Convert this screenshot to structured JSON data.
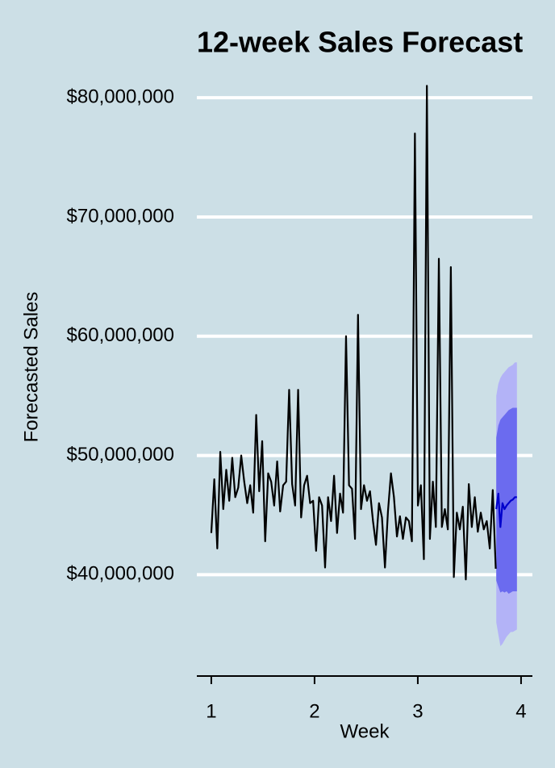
{
  "chart_data": {
    "type": "line",
    "title": "12-week Sales Forecast",
    "x_label": "Week",
    "y_label": "Forecasted Sales",
    "xlim": [
      0.86,
      4.11
    ],
    "xticks": [
      1,
      2,
      3,
      4
    ],
    "ylim": [
      31500000,
      81500000
    ],
    "yticks": [
      {
        "value": 40000000,
        "label": "$40,000,000"
      },
      {
        "value": 50000000,
        "label": "$50,000,000"
      },
      {
        "value": 60000000,
        "label": "$60,000,000"
      },
      {
        "value": 70000000,
        "label": "$70,000,000"
      },
      {
        "value": 80000000,
        "label": "$80,000,000"
      }
    ],
    "grid": true,
    "grid_color": "#ffffff",
    "background": "#ccdfe6",
    "bands": [
      {
        "color": "#b3b3f7",
        "x": [
          3.76,
          3.78,
          3.8,
          3.82,
          3.84,
          3.86,
          3.88,
          3.9,
          3.92,
          3.94,
          3.96
        ],
        "lower": [
          36000000,
          35000000,
          34000000,
          34200000,
          34500000,
          34800000,
          35000000,
          35200000,
          35200000,
          35300000,
          35400000
        ],
        "upper": [
          55000000,
          56000000,
          56500000,
          56800000,
          57000000,
          57200000,
          57400000,
          57500000,
          57600000,
          57800000,
          57800000
        ]
      },
      {
        "color": "#6b6bef",
        "x": [
          3.76,
          3.78,
          3.8,
          3.82,
          3.84,
          3.86,
          3.88,
          3.9,
          3.92,
          3.94,
          3.96
        ],
        "lower": [
          39500000,
          39000000,
          38500000,
          38600000,
          38500000,
          38600000,
          38400000,
          38500000,
          38600000,
          38600000,
          38600000
        ],
        "upper": [
          51500000,
          52500000,
          53000000,
          53200000,
          53400000,
          53600000,
          53800000,
          53900000,
          54000000,
          54000000,
          54000000
        ]
      }
    ],
    "series": [
      {
        "color": "#000000",
        "x": [
          1,
          1.029,
          1.058,
          1.087,
          1.116,
          1.145,
          1.174,
          1.203,
          1.232,
          1.261,
          1.29,
          1.319,
          1.348,
          1.377,
          1.406,
          1.435,
          1.464,
          1.493,
          1.522,
          1.551,
          1.58,
          1.609,
          1.638,
          1.667,
          1.696,
          1.725,
          1.754,
          1.783,
          1.812,
          1.841,
          1.87,
          1.899,
          1.928,
          1.957,
          1.986,
          2.015,
          2.044,
          2.073,
          2.102,
          2.131,
          2.16,
          2.189,
          2.218,
          2.247,
          2.276,
          2.305,
          2.334,
          2.363,
          2.392,
          2.421,
          2.45,
          2.479,
          2.508,
          2.537,
          2.566,
          2.595,
          2.624,
          2.653,
          2.682,
          2.711,
          2.74,
          2.769,
          2.798,
          2.827,
          2.856,
          2.885,
          2.914,
          2.943,
          2.972,
          3.001,
          3.03,
          3.059,
          3.088,
          3.117,
          3.146,
          3.175,
          3.204,
          3.233,
          3.262,
          3.291,
          3.32,
          3.349,
          3.378,
          3.407,
          3.436,
          3.465,
          3.494,
          3.523,
          3.552,
          3.581,
          3.61,
          3.639,
          3.668,
          3.697,
          3.726,
          3.755
        ],
        "values": [
          43500000,
          48000000,
          42200000,
          50300000,
          45500000,
          48800000,
          46200000,
          49800000,
          46500000,
          47300000,
          50000000,
          47800000,
          46000000,
          47500000,
          45200000,
          53400000,
          47000000,
          51200000,
          42800000,
          48500000,
          47800000,
          45800000,
          49500000,
          45300000,
          47500000,
          47800000,
          55500000,
          47600000,
          45800000,
          55500000,
          44800000,
          47500000,
          48300000,
          46000000,
          46200000,
          42000000,
          46500000,
          45800000,
          40600000,
          46500000,
          44500000,
          48300000,
          43500000,
          46800000,
          45200000,
          60000000,
          47500000,
          47200000,
          43000000,
          61800000,
          45500000,
          47500000,
          46200000,
          47000000,
          44500000,
          42500000,
          46000000,
          44800000,
          40600000,
          45300000,
          48500000,
          46500000,
          43200000,
          44900000,
          43000000,
          44800000,
          44500000,
          42800000,
          77000000,
          45800000,
          47500000,
          41300000,
          81000000,
          43000000,
          47800000,
          44000000,
          66500000,
          44000000,
          45500000,
          43800000,
          65800000,
          39800000,
          45200000,
          43800000,
          45700000,
          39600000,
          47600000,
          44000000,
          46500000,
          43600000,
          45200000,
          43800000,
          44500000,
          42200000,
          47100000,
          40500000
        ]
      },
      {
        "color": "#0000cc",
        "x": [
          3.76,
          3.78,
          3.8,
          3.82,
          3.84,
          3.86,
          3.88,
          3.9,
          3.92,
          3.94,
          3.96
        ],
        "values": [
          45500000,
          46800000,
          44000000,
          46000000,
          45500000,
          45800000,
          46000000,
          46200000,
          46300000,
          46500000,
          46500000
        ]
      }
    ]
  }
}
